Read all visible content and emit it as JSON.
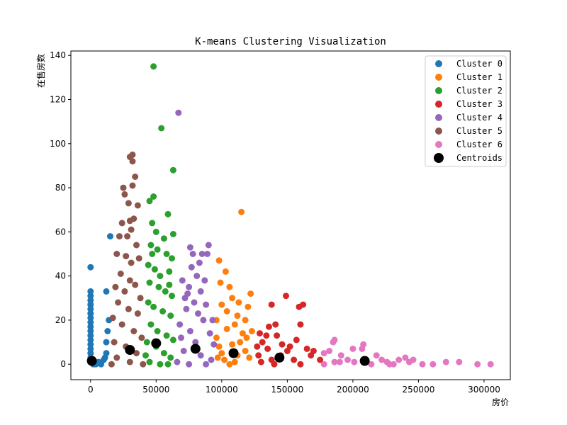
{
  "chart_data": {
    "type": "scatter",
    "title": "K-means Clustering Visualization",
    "xlabel": "房价",
    "ylabel": "在售房数",
    "xlim": [
      -15000,
      320000
    ],
    "ylim": [
      -7,
      142
    ],
    "xticks": [
      0,
      50000,
      100000,
      150000,
      200000,
      250000,
      300000
    ],
    "yticks": [
      0,
      20,
      40,
      60,
      80,
      100,
      120,
      140
    ],
    "grid": false,
    "legend_position": "top-right",
    "series": [
      {
        "name": "Cluster 0",
        "color": "#1f77b4",
        "points": [
          [
            0,
            44
          ],
          [
            0,
            33
          ],
          [
            0,
            31
          ],
          [
            0,
            29
          ],
          [
            0,
            27
          ],
          [
            0,
            25
          ],
          [
            0,
            23
          ],
          [
            0,
            21
          ],
          [
            0,
            19
          ],
          [
            0,
            17
          ],
          [
            0,
            15
          ],
          [
            0,
            13
          ],
          [
            0,
            11
          ],
          [
            0,
            9
          ],
          [
            0,
            7
          ],
          [
            0,
            5
          ],
          [
            0,
            3
          ],
          [
            0,
            1
          ],
          [
            2000,
            0
          ],
          [
            6000,
            1
          ],
          [
            10000,
            2
          ],
          [
            12000,
            5
          ],
          [
            12000,
            10
          ],
          [
            13000,
            15
          ],
          [
            12000,
            33
          ],
          [
            14000,
            20
          ],
          [
            15000,
            58
          ],
          [
            11000,
            3
          ],
          [
            8000,
            0
          ],
          [
            4000,
            0
          ]
        ]
      },
      {
        "name": "Cluster 1",
        "color": "#ff7f0e",
        "points": [
          [
            115000,
            69
          ],
          [
            98000,
            47
          ],
          [
            99000,
            37
          ],
          [
            103000,
            42
          ],
          [
            106000,
            35
          ],
          [
            108000,
            30
          ],
          [
            100000,
            27
          ],
          [
            104000,
            24
          ],
          [
            112000,
            22
          ],
          [
            118000,
            20
          ],
          [
            120000,
            26
          ],
          [
            122000,
            32
          ],
          [
            123000,
            15
          ],
          [
            110000,
            18
          ],
          [
            96000,
            12
          ],
          [
            98000,
            8
          ],
          [
            100000,
            5
          ],
          [
            102000,
            2
          ],
          [
            106000,
            0
          ],
          [
            114000,
            10
          ],
          [
            118000,
            6
          ],
          [
            121000,
            3
          ],
          [
            116000,
            14
          ],
          [
            112000,
            4
          ],
          [
            108000,
            9
          ],
          [
            104000,
            16
          ],
          [
            96000,
            20
          ],
          [
            97000,
            3
          ],
          [
            110000,
            1
          ],
          [
            119000,
            12
          ],
          [
            113000,
            28
          ]
        ]
      },
      {
        "name": "Cluster 2",
        "color": "#2ca02c",
        "points": [
          [
            48000,
            135
          ],
          [
            54000,
            107
          ],
          [
            63000,
            88
          ],
          [
            48000,
            76
          ],
          [
            45000,
            74
          ],
          [
            59000,
            68
          ],
          [
            47000,
            64
          ],
          [
            50000,
            60
          ],
          [
            56000,
            57
          ],
          [
            63000,
            59
          ],
          [
            46000,
            54
          ],
          [
            51000,
            52
          ],
          [
            58000,
            50
          ],
          [
            62000,
            48
          ],
          [
            44000,
            45
          ],
          [
            49000,
            43
          ],
          [
            53000,
            40
          ],
          [
            60000,
            42
          ],
          [
            45000,
            37
          ],
          [
            52000,
            35
          ],
          [
            57000,
            33
          ],
          [
            62000,
            31
          ],
          [
            44000,
            28
          ],
          [
            48000,
            26
          ],
          [
            55000,
            24
          ],
          [
            61000,
            22
          ],
          [
            46000,
            18
          ],
          [
            51000,
            15
          ],
          [
            58000,
            13
          ],
          [
            43000,
            10
          ],
          [
            50000,
            8
          ],
          [
            56000,
            5
          ],
          [
            61000,
            3
          ],
          [
            45000,
            1
          ],
          [
            53000,
            0
          ],
          [
            59000,
            0
          ],
          [
            42000,
            4
          ],
          [
            63000,
            11
          ],
          [
            60000,
            36
          ],
          [
            47000,
            50
          ]
        ]
      },
      {
        "name": "Cluster 3",
        "color": "#d62728",
        "points": [
          [
            149000,
            31
          ],
          [
            138000,
            27
          ],
          [
            162000,
            27
          ],
          [
            159000,
            26
          ],
          [
            160000,
            18
          ],
          [
            141000,
            18
          ],
          [
            136000,
            17
          ],
          [
            129000,
            14
          ],
          [
            134000,
            13
          ],
          [
            131000,
            10
          ],
          [
            127000,
            8
          ],
          [
            135000,
            7
          ],
          [
            146000,
            9
          ],
          [
            157000,
            11
          ],
          [
            165000,
            7
          ],
          [
            170000,
            6
          ],
          [
            168000,
            4
          ],
          [
            175000,
            2
          ],
          [
            155000,
            2
          ],
          [
            145000,
            4
          ],
          [
            138000,
            2
          ],
          [
            130000,
            1
          ],
          [
            150000,
            6
          ],
          [
            128000,
            4
          ],
          [
            142000,
            13
          ],
          [
            152000,
            8
          ],
          [
            160000,
            0
          ],
          [
            140000,
            0
          ]
        ]
      },
      {
        "name": "Cluster 4",
        "color": "#9467bd",
        "points": [
          [
            67000,
            114
          ],
          [
            90000,
            54
          ],
          [
            76000,
            53
          ],
          [
            78000,
            50
          ],
          [
            85000,
            50
          ],
          [
            89000,
            50
          ],
          [
            83000,
            46
          ],
          [
            77000,
            44
          ],
          [
            81000,
            40
          ],
          [
            70000,
            38
          ],
          [
            87000,
            38
          ],
          [
            75000,
            35
          ],
          [
            84000,
            33
          ],
          [
            72000,
            30
          ],
          [
            79000,
            28
          ],
          [
            88000,
            27
          ],
          [
            73000,
            25
          ],
          [
            82000,
            23
          ],
          [
            86000,
            20
          ],
          [
            68000,
            18
          ],
          [
            76000,
            15
          ],
          [
            91000,
            14
          ],
          [
            69000,
            12
          ],
          [
            80000,
            10
          ],
          [
            94000,
            9
          ],
          [
            71000,
            6
          ],
          [
            84000,
            4
          ],
          [
            92000,
            2
          ],
          [
            66000,
            1
          ],
          [
            75000,
            0
          ],
          [
            88000,
            0
          ],
          [
            93000,
            20
          ],
          [
            74000,
            32
          ]
        ]
      },
      {
        "name": "Cluster 5",
        "color": "#8c564b",
        "points": [
          [
            32000,
            95
          ],
          [
            30000,
            94
          ],
          [
            32000,
            92
          ],
          [
            34000,
            85
          ],
          [
            25000,
            80
          ],
          [
            32000,
            81
          ],
          [
            26000,
            77
          ],
          [
            29000,
            73
          ],
          [
            36000,
            72
          ],
          [
            33000,
            66
          ],
          [
            24000,
            64
          ],
          [
            31000,
            61
          ],
          [
            28000,
            58
          ],
          [
            22000,
            58
          ],
          [
            20000,
            50
          ],
          [
            35000,
            54
          ],
          [
            27000,
            49
          ],
          [
            31000,
            46
          ],
          [
            23000,
            41
          ],
          [
            30000,
            38
          ],
          [
            34000,
            36
          ],
          [
            19000,
            35
          ],
          [
            26000,
            33
          ],
          [
            38000,
            30
          ],
          [
            21000,
            28
          ],
          [
            29000,
            25
          ],
          [
            36000,
            23
          ],
          [
            17000,
            21
          ],
          [
            24000,
            18
          ],
          [
            33000,
            15
          ],
          [
            39000,
            12
          ],
          [
            18000,
            10
          ],
          [
            27000,
            8
          ],
          [
            35000,
            5
          ],
          [
            20000,
            3
          ],
          [
            30000,
            1
          ],
          [
            40000,
            0
          ],
          [
            16000,
            0
          ],
          [
            37000,
            48
          ],
          [
            30000,
            65
          ]
        ]
      },
      {
        "name": "Cluster 6",
        "color": "#e377c2",
        "points": [
          [
            186000,
            11
          ],
          [
            185000,
            10
          ],
          [
            208000,
            9
          ],
          [
            207000,
            7
          ],
          [
            200000,
            7
          ],
          [
            182000,
            6
          ],
          [
            178000,
            5
          ],
          [
            191000,
            4
          ],
          [
            218000,
            4
          ],
          [
            240000,
            3
          ],
          [
            235000,
            2
          ],
          [
            222000,
            2
          ],
          [
            196000,
            2
          ],
          [
            186000,
            1
          ],
          [
            178000,
            0
          ],
          [
            190000,
            1
          ],
          [
            201000,
            1
          ],
          [
            214000,
            0
          ],
          [
            226000,
            1
          ],
          [
            231000,
            0
          ],
          [
            246000,
            2
          ],
          [
            253000,
            0
          ],
          [
            261000,
            0
          ],
          [
            271000,
            1
          ],
          [
            281000,
            1
          ],
          [
            295000,
            0
          ],
          [
            305000,
            0
          ],
          [
            210000,
            1
          ],
          [
            243000,
            1
          ],
          [
            228000,
            0
          ]
        ]
      }
    ],
    "centroids": {
      "name": "Centroids",
      "color": "#000000",
      "points": [
        [
          1000,
          1.5
        ],
        [
          30000,
          6.5
        ],
        [
          50000,
          9.5
        ],
        [
          80000,
          7
        ],
        [
          109000,
          5
        ],
        [
          144000,
          3
        ],
        [
          209000,
          1.5
        ]
      ]
    }
  }
}
